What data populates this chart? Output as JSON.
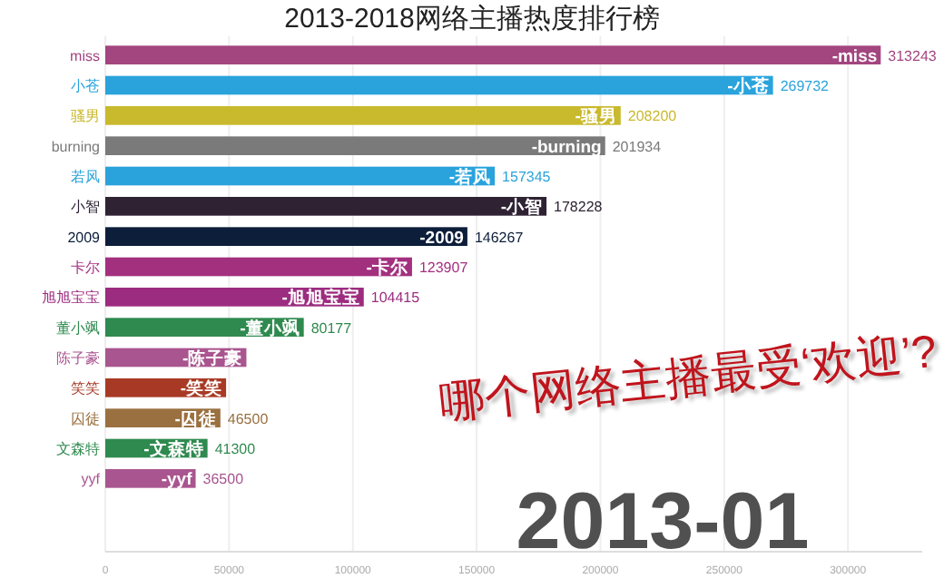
{
  "chart_data": {
    "type": "bar",
    "orientation": "horizontal",
    "title": "2013-2018网络主播热度排行榜",
    "categories": [
      "miss",
      "小苍",
      "骚男",
      "burning",
      "若风",
      "小智",
      "2009",
      "卡尔",
      "旭旭宝宝",
      "董小飒",
      "陈子豪",
      "笑笑",
      "囚徒",
      "文森特",
      "yyf"
    ],
    "values": [
      313243,
      269732,
      208200,
      201934,
      157345,
      178228,
      146267,
      123907,
      104415,
      80177,
      57000,
      48800,
      46500,
      41300,
      36500
    ],
    "value_labels": [
      "313243",
      "269732",
      "208200",
      "201934",
      "157345",
      "178228",
      "146267",
      "123907",
      "104415",
      "80177",
      null,
      null,
      "46500",
      "41300",
      "36500"
    ],
    "colors": [
      "#a3457f",
      "#2aa3dc",
      "#c9b92c",
      "#7a7a7a",
      "#2aa3dc",
      "#2e2233",
      "#0d1e3a",
      "#a3307f",
      "#9c2c7f",
      "#2f8a4f",
      "#a9558f",
      "#a83a25",
      "#9a7040",
      "#2f8a4f",
      "#a9558f"
    ],
    "xlim": [
      0,
      330000
    ],
    "xticks": [
      0,
      50000,
      100000,
      150000,
      200000,
      250000,
      300000
    ],
    "grid": "x",
    "annotations": [
      {
        "text": "-miss",
        "x": 313243,
        "y": "miss"
      },
      {
        "text": "-小苍",
        "x": 269732,
        "y": "小苍"
      },
      {
        "text": "-骚男",
        "x": 208200,
        "y": "骚男"
      },
      {
        "text": "-burning",
        "x": 201934,
        "y": "burning"
      },
      {
        "text": "-若风",
        "x": 157345,
        "y": "若风"
      },
      {
        "text": "-小智",
        "x": 178228,
        "y": "小智"
      },
      {
        "text": "-2009",
        "x": 146267,
        "y": "2009"
      },
      {
        "text": "-卡尔",
        "x": 123907,
        "y": "卡尔"
      },
      {
        "text": "-旭旭宝宝",
        "x": 104415,
        "y": "旭旭宝宝"
      },
      {
        "text": "-董小飒",
        "x": 80177,
        "y": "董小飒"
      },
      {
        "text": "-陈子豪",
        "x": 57000,
        "y": "陈子豪"
      },
      {
        "text": "-笑笑",
        "x": 48800,
        "y": "笑笑"
      },
      {
        "text": "-囚徒",
        "x": 46500,
        "y": "囚徒"
      },
      {
        "text": "-文森特",
        "x": 41300,
        "y": "文森特"
      },
      {
        "text": "-yyf",
        "x": 36500,
        "y": "yyf"
      },
      "哪个网络主播最受‘欢迎’?",
      "2013-01"
    ]
  }
}
